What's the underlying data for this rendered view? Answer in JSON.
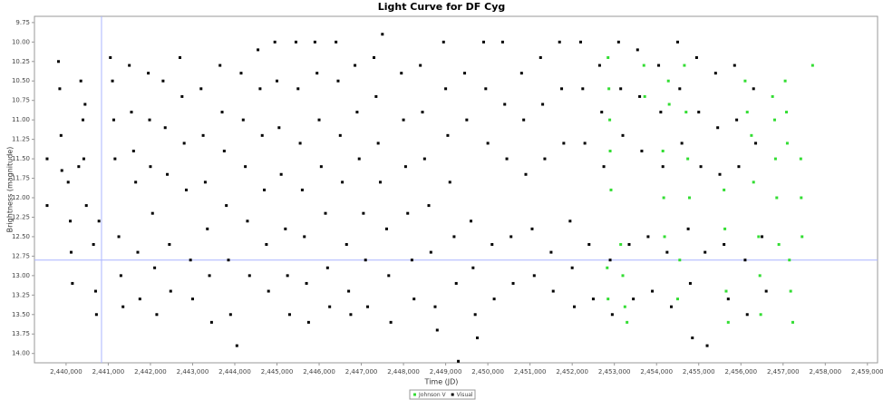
{
  "chart_data": {
    "type": "scatter",
    "title": "Light Curve for DF Cyg",
    "x_label": "Time (JD)",
    "y_label": "Brightness (magnitude)",
    "xlim": [
      2439250,
      2459240
    ],
    "ylim": [
      9.67,
      14.12
    ],
    "y_inverted": true,
    "xticks": [
      {
        "value": 2440000,
        "label": "2,440,000"
      },
      {
        "value": 2441000,
        "label": "2,441,000"
      },
      {
        "value": 2442000,
        "label": "2,442,000"
      },
      {
        "value": 2443000,
        "label": "2,443,000"
      },
      {
        "value": 2444000,
        "label": "2,444,000"
      },
      {
        "value": 2445000,
        "label": "2,445,000"
      },
      {
        "value": 2446000,
        "label": "2,446,000"
      },
      {
        "value": 2447000,
        "label": "2,447,000"
      },
      {
        "value": 2448000,
        "label": "2,448,000"
      },
      {
        "value": 2449000,
        "label": "2,449,000"
      },
      {
        "value": 2450000,
        "label": "2,450,000"
      },
      {
        "value": 2451000,
        "label": "2,451,000"
      },
      {
        "value": 2452000,
        "label": "2,452,000"
      },
      {
        "value": 2453000,
        "label": "2,453,000"
      },
      {
        "value": 2454000,
        "label": "2,454,000"
      },
      {
        "value": 2455000,
        "label": "2,455,000"
      },
      {
        "value": 2456000,
        "label": "2,456,000"
      },
      {
        "value": 2457000,
        "label": "2,457,000"
      },
      {
        "value": 2458000,
        "label": "2,458,000"
      },
      {
        "value": 2459000,
        "label": "2,459,000"
      }
    ],
    "yticks": [
      9.75,
      {
        "value": 10,
        "label": "10.00"
      },
      10.25,
      {
        "value": 10.5,
        "label": "10.50"
      },
      10.75,
      {
        "value": 11,
        "label": "11.00"
      },
      11.25,
      {
        "value": 11.5,
        "label": "11.50"
      },
      11.75,
      {
        "value": 12,
        "label": "12.00"
      },
      12.25,
      {
        "value": 12.5,
        "label": "12.50"
      },
      12.75,
      {
        "value": 13,
        "label": "13.00"
      },
      13.25,
      {
        "value": 13.5,
        "label": "13.50"
      },
      13.75,
      {
        "value": 14,
        "label": "14.00"
      }
    ],
    "crosshair": {
      "x": 2440840,
      "y": 12.8
    },
    "series": [
      {
        "name": "Johnson V",
        "color": "#33dd33",
        "x": [
          2452850,
          2452870,
          2452890,
          2452900,
          2452920,
          2452830,
          2452850,
          2453150,
          2453200,
          2453250,
          2453300,
          2453700,
          2453720,
          2454150,
          2454170,
          2454190,
          2454280,
          2454300,
          2454660,
          2454700,
          2454740,
          2454780,
          2454550,
          2454500,
          2455600,
          2455620,
          2455650,
          2455700,
          2456100,
          2456150,
          2456250,
          2456300,
          2456420,
          2456450,
          2456470,
          2456750,
          2456800,
          2456820,
          2456850,
          2456900,
          2457050,
          2457080,
          2457100,
          2457150,
          2457180,
          2457230,
          2457420,
          2457430,
          2457450,
          2457700
        ],
        "values": [
          10.2,
          10.6,
          11.0,
          11.4,
          11.9,
          12.9,
          13.3,
          12.6,
          13.0,
          13.4,
          13.6,
          10.3,
          10.7,
          11.4,
          12.0,
          12.5,
          10.5,
          10.8,
          10.3,
          10.9,
          11.5,
          12.0,
          12.8,
          13.3,
          11.9,
          12.4,
          13.2,
          13.6,
          10.5,
          10.9,
          11.2,
          11.8,
          12.5,
          13.0,
          13.5,
          10.7,
          11.0,
          11.5,
          12.0,
          12.6,
          10.5,
          10.9,
          11.3,
          12.8,
          13.2,
          13.6,
          11.5,
          12.0,
          12.5,
          10.3
        ]
      },
      {
        "name": "Visual",
        "color": "#000000",
        "x": [
          2439550,
          2439550,
          2439820,
          2439850,
          2439880,
          2439900,
          2440050,
          2440100,
          2440120,
          2440150,
          2440300,
          2440350,
          2440400,
          2440420,
          2440450,
          2440480,
          2440650,
          2440700,
          2440720,
          2440780,
          2441050,
          2441100,
          2441130,
          2441160,
          2441250,
          2441300,
          2441350,
          2441500,
          2441550,
          2441600,
          2441650,
          2441700,
          2441750,
          2441950,
          2441980,
          2442000,
          2442050,
          2442100,
          2442150,
          2442300,
          2442350,
          2442400,
          2442450,
          2442480,
          2442700,
          2442750,
          2442800,
          2442850,
          2442950,
          2443000,
          2443200,
          2443250,
          2443300,
          2443350,
          2443400,
          2443450,
          2443650,
          2443700,
          2443750,
          2443800,
          2443850,
          2443900,
          2444050,
          2444150,
          2444200,
          2444250,
          2444300,
          2444350,
          2444550,
          2444600,
          2444650,
          2444700,
          2444750,
          2444800,
          2444950,
          2445000,
          2445050,
          2445100,
          2445200,
          2445250,
          2445300,
          2445450,
          2445500,
          2445550,
          2445600,
          2445650,
          2445700,
          2445750,
          2445900,
          2445950,
          2446000,
          2446050,
          2446150,
          2446200,
          2446250,
          2446400,
          2446450,
          2446500,
          2446550,
          2446650,
          2446700,
          2446750,
          2446850,
          2446900,
          2446950,
          2447050,
          2447100,
          2447150,
          2447300,
          2447350,
          2447400,
          2447450,
          2447500,
          2447600,
          2447650,
          2447700,
          2447950,
          2448000,
          2448050,
          2448100,
          2448200,
          2448250,
          2448400,
          2448450,
          2448500,
          2448600,
          2448650,
          2448750,
          2448800,
          2448950,
          2449000,
          2449050,
          2449100,
          2449200,
          2449250,
          2449300,
          2449450,
          2449500,
          2449600,
          2449650,
          2449700,
          2449750,
          2449900,
          2449950,
          2450000,
          2450100,
          2450150,
          2450350,
          2450400,
          2450450,
          2450550,
          2450600,
          2450800,
          2450850,
          2450900,
          2451050,
          2451100,
          2451250,
          2451300,
          2451350,
          2451500,
          2451550,
          2451700,
          2451750,
          2451800,
          2451950,
          2452000,
          2452050,
          2452200,
          2452250,
          2452300,
          2452400,
          2452500,
          2452650,
          2452700,
          2452750,
          2452900,
          2452950,
          2453100,
          2453150,
          2453200,
          2453350,
          2453450,
          2453550,
          2453600,
          2453650,
          2453800,
          2453900,
          2454050,
          2454100,
          2454150,
          2454250,
          2454350,
          2454500,
          2454550,
          2454600,
          2454750,
          2454800,
          2454850,
          2454950,
          2455000,
          2455050,
          2455150,
          2455200,
          2455400,
          2455450,
          2455500,
          2455600,
          2455700,
          2455850,
          2455900,
          2455950,
          2456100,
          2456150,
          2456300,
          2456350,
          2456500,
          2456600
        ],
        "values": [
          11.5,
          12.1,
          10.25,
          10.6,
          11.2,
          11.65,
          11.8,
          12.3,
          12.7,
          13.1,
          11.6,
          10.5,
          11.0,
          11.5,
          10.8,
          12.1,
          12.6,
          13.2,
          13.5,
          12.3,
          10.2,
          10.5,
          11.0,
          11.5,
          12.5,
          13.0,
          13.4,
          10.3,
          10.9,
          11.4,
          11.8,
          12.7,
          13.3,
          10.4,
          11.0,
          11.6,
          12.2,
          12.9,
          13.5,
          10.5,
          11.1,
          11.7,
          12.6,
          13.2,
          10.2,
          10.7,
          11.3,
          11.9,
          12.8,
          13.3,
          10.6,
          11.2,
          11.8,
          12.4,
          13.0,
          13.6,
          10.3,
          10.9,
          11.4,
          12.1,
          12.8,
          13.5,
          13.9,
          10.4,
          11.0,
          11.6,
          12.3,
          13.0,
          10.1,
          10.6,
          11.2,
          11.9,
          12.6,
          13.2,
          10.0,
          10.5,
          11.1,
          11.7,
          12.4,
          13.0,
          13.5,
          10.0,
          10.6,
          11.3,
          11.9,
          12.5,
          13.1,
          13.6,
          10.0,
          10.4,
          11.0,
          11.6,
          12.2,
          12.9,
          13.4,
          10.0,
          10.5,
          11.2,
          11.8,
          12.6,
          13.2,
          13.5,
          10.3,
          10.9,
          11.5,
          12.2,
          12.8,
          13.4,
          10.2,
          10.7,
          11.3,
          11.8,
          9.9,
          12.4,
          13.0,
          13.6,
          10.4,
          11.0,
          11.6,
          12.2,
          12.8,
          13.3,
          10.3,
          10.9,
          11.5,
          12.1,
          12.7,
          13.4,
          13.7,
          10.0,
          10.6,
          11.2,
          11.8,
          12.5,
          13.1,
          14.1,
          10.4,
          11.0,
          12.3,
          12.9,
          13.5,
          13.8,
          10.0,
          10.6,
          11.3,
          12.6,
          13.3,
          10.0,
          10.8,
          11.5,
          12.5,
          13.1,
          10.4,
          11.0,
          11.7,
          12.4,
          13.0,
          10.2,
          10.8,
          11.5,
          12.7,
          13.2,
          10.0,
          10.6,
          11.3,
          12.3,
          12.9,
          13.4,
          10.0,
          10.6,
          11.3,
          12.6,
          13.3,
          10.3,
          10.9,
          11.6,
          12.8,
          13.5,
          10.0,
          10.6,
          11.2,
          12.6,
          13.3,
          10.1,
          10.7,
          11.4,
          12.5,
          13.2,
          10.3,
          10.9,
          11.6,
          12.7,
          13.4,
          10.0,
          10.6,
          11.3,
          12.4,
          13.1,
          13.8,
          10.2,
          10.9,
          11.6,
          12.7,
          13.9,
          10.4,
          11.1,
          11.7,
          12.6,
          13.3,
          10.3,
          11.0,
          11.6,
          12.8,
          13.5,
          10.6,
          11.3,
          12.5,
          13.2
        ]
      }
    ]
  }
}
